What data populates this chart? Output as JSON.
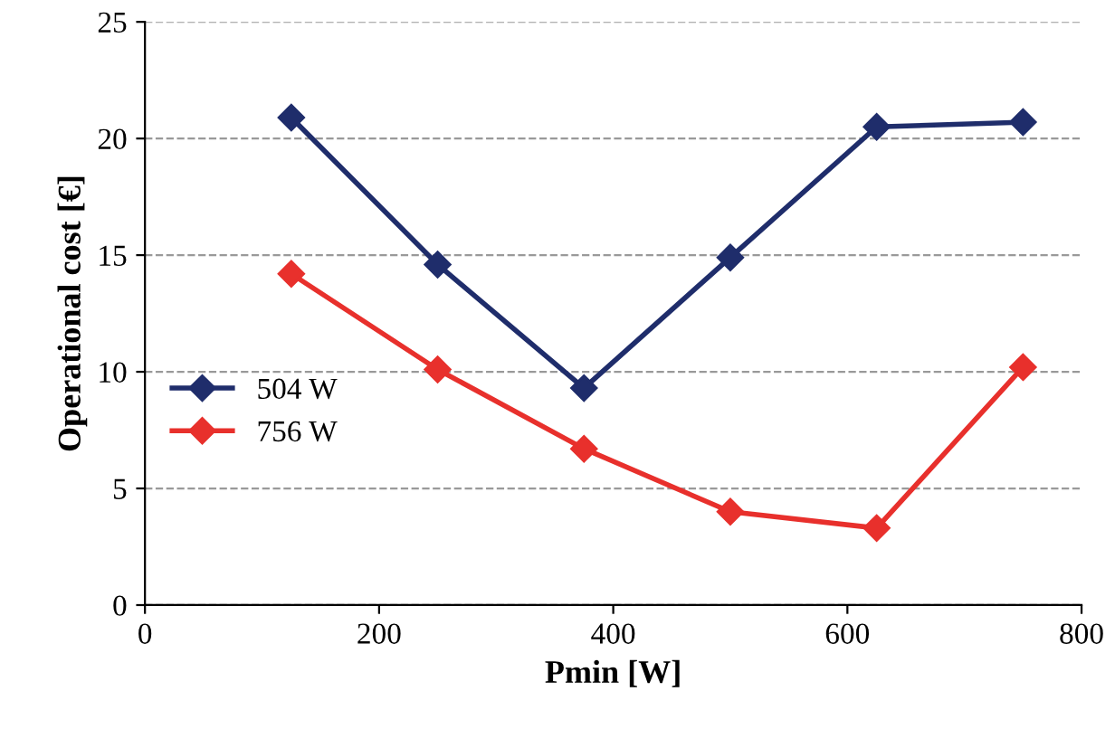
{
  "chart_data": {
    "type": "line",
    "xlabel": "Pmin [W]",
    "ylabel": "Operational cost [€]",
    "x": [
      125,
      250,
      375,
      500,
      625,
      750
    ],
    "series": [
      {
        "name": "504 W",
        "color": "#1f2d6b",
        "values": [
          20.9,
          14.6,
          9.3,
          14.9,
          20.5,
          20.7
        ]
      },
      {
        "name": "756 W",
        "color": "#e8302c",
        "values": [
          14.2,
          10.1,
          6.7,
          4.0,
          3.3,
          10.2
        ]
      }
    ],
    "xlim": [
      0,
      800
    ],
    "xticks": [
      0,
      200,
      400,
      600,
      800
    ],
    "ylim": [
      0,
      25
    ],
    "yticks": [
      0,
      5,
      10,
      15,
      20,
      25
    ],
    "grid": "y",
    "legend": "left",
    "marker": "diamond",
    "line_style": "solid"
  }
}
